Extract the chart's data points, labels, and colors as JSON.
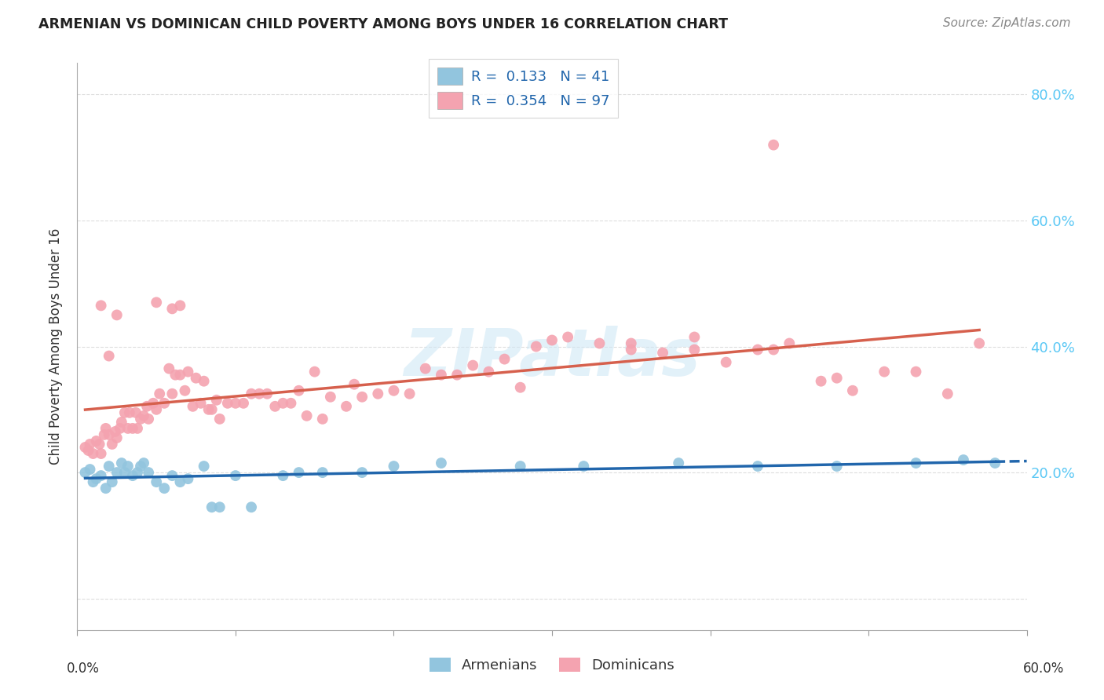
{
  "title": "ARMENIAN VS DOMINICAN CHILD POVERTY AMONG BOYS UNDER 16 CORRELATION CHART",
  "source": "Source: ZipAtlas.com",
  "ylabel": "Child Poverty Among Boys Under 16",
  "xlim": [
    0.0,
    0.6
  ],
  "ylim": [
    -0.05,
    0.85
  ],
  "yticks": [
    0.0,
    0.2,
    0.4,
    0.6,
    0.8
  ],
  "armenian_R": "0.133",
  "armenian_N": "41",
  "dominican_R": "0.354",
  "dominican_N": "97",
  "armenian_color": "#92c5de",
  "armenian_line_color": "#2166ac",
  "dominican_color": "#f4a3b0",
  "dominican_line_color": "#d6604d",
  "watermark": "ZIPatlas",
  "armenian_scatter_x": [
    0.005,
    0.008,
    0.01,
    0.012,
    0.015,
    0.018,
    0.02,
    0.022,
    0.025,
    0.028,
    0.03,
    0.032,
    0.035,
    0.038,
    0.04,
    0.042,
    0.045,
    0.05,
    0.055,
    0.06,
    0.065,
    0.07,
    0.08,
    0.085,
    0.09,
    0.1,
    0.11,
    0.13,
    0.14,
    0.155,
    0.18,
    0.2,
    0.23,
    0.28,
    0.32,
    0.38,
    0.43,
    0.48,
    0.53,
    0.56,
    0.58
  ],
  "armenian_scatter_y": [
    0.2,
    0.205,
    0.185,
    0.19,
    0.195,
    0.175,
    0.21,
    0.185,
    0.2,
    0.215,
    0.2,
    0.21,
    0.195,
    0.2,
    0.21,
    0.215,
    0.2,
    0.185,
    0.175,
    0.195,
    0.185,
    0.19,
    0.21,
    0.145,
    0.145,
    0.195,
    0.145,
    0.195,
    0.2,
    0.2,
    0.2,
    0.21,
    0.215,
    0.21,
    0.21,
    0.215,
    0.21,
    0.21,
    0.215,
    0.22,
    0.215
  ],
  "dominican_scatter_x": [
    0.005,
    0.007,
    0.008,
    0.01,
    0.012,
    0.014,
    0.015,
    0.017,
    0.018,
    0.02,
    0.022,
    0.024,
    0.025,
    0.027,
    0.028,
    0.03,
    0.032,
    0.033,
    0.035,
    0.037,
    0.038,
    0.04,
    0.042,
    0.044,
    0.045,
    0.048,
    0.05,
    0.052,
    0.055,
    0.058,
    0.06,
    0.062,
    0.065,
    0.068,
    0.07,
    0.073,
    0.075,
    0.078,
    0.08,
    0.083,
    0.085,
    0.088,
    0.09,
    0.095,
    0.1,
    0.105,
    0.11,
    0.115,
    0.12,
    0.125,
    0.13,
    0.135,
    0.14,
    0.145,
    0.15,
    0.155,
    0.16,
    0.17,
    0.175,
    0.18,
    0.19,
    0.2,
    0.21,
    0.22,
    0.23,
    0.24,
    0.25,
    0.26,
    0.27,
    0.28,
    0.29,
    0.3,
    0.31,
    0.33,
    0.35,
    0.37,
    0.39,
    0.41,
    0.43,
    0.45,
    0.47,
    0.49,
    0.51,
    0.53,
    0.55,
    0.57,
    0.015,
    0.02,
    0.025,
    0.05,
    0.06,
    0.065,
    0.35,
    0.39,
    0.44,
    0.48,
    0.44
  ],
  "dominican_scatter_y": [
    0.24,
    0.235,
    0.245,
    0.23,
    0.25,
    0.245,
    0.23,
    0.26,
    0.27,
    0.26,
    0.245,
    0.265,
    0.255,
    0.27,
    0.28,
    0.295,
    0.27,
    0.295,
    0.27,
    0.295,
    0.27,
    0.285,
    0.29,
    0.305,
    0.285,
    0.31,
    0.3,
    0.325,
    0.31,
    0.365,
    0.325,
    0.355,
    0.355,
    0.33,
    0.36,
    0.305,
    0.35,
    0.31,
    0.345,
    0.3,
    0.3,
    0.315,
    0.285,
    0.31,
    0.31,
    0.31,
    0.325,
    0.325,
    0.325,
    0.305,
    0.31,
    0.31,
    0.33,
    0.29,
    0.36,
    0.285,
    0.32,
    0.305,
    0.34,
    0.32,
    0.325,
    0.33,
    0.325,
    0.365,
    0.355,
    0.355,
    0.37,
    0.36,
    0.38,
    0.335,
    0.4,
    0.41,
    0.415,
    0.405,
    0.405,
    0.39,
    0.395,
    0.375,
    0.395,
    0.405,
    0.345,
    0.33,
    0.36,
    0.36,
    0.325,
    0.405,
    0.465,
    0.385,
    0.45,
    0.47,
    0.46,
    0.465,
    0.395,
    0.415,
    0.395,
    0.35,
    0.72
  ]
}
